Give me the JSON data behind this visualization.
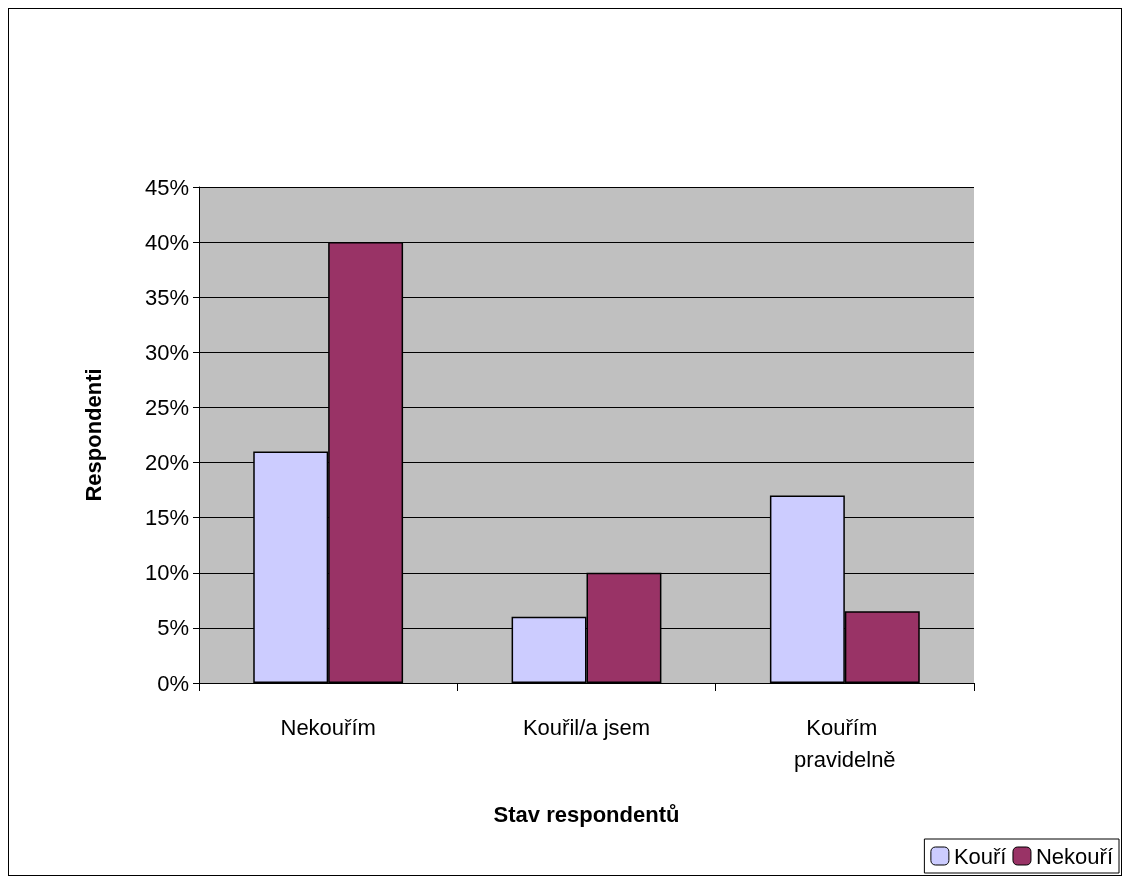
{
  "chart_data": {
    "type": "bar",
    "xlabel": "Stav respondentů",
    "ylabel": "Respondenti",
    "categories": [
      "Nekouřím",
      "Kouřil/a jsem",
      "Kouřím pravidelně"
    ],
    "series": [
      {
        "name": "Kouří",
        "color": "#ccccff",
        "values": [
          21,
          6,
          17
        ]
      },
      {
        "name": "Nekouří",
        "color": "#993366",
        "values": [
          40,
          10,
          6.5
        ]
      }
    ],
    "ylim": [
      0,
      45
    ],
    "yticks": [
      {
        "value": 0,
        "label": "0%"
      },
      {
        "value": 5,
        "label": "5%"
      },
      {
        "value": 10,
        "label": "10%"
      },
      {
        "value": 15,
        "label": "15%"
      },
      {
        "value": 20,
        "label": "20%"
      },
      {
        "value": 25,
        "label": "25%"
      },
      {
        "value": 30,
        "label": "30%"
      },
      {
        "value": 35,
        "label": "35%"
      },
      {
        "value": 40,
        "label": "40%"
      },
      {
        "value": 45,
        "label": "45%"
      }
    ],
    "grid": "y",
    "legend": "bottom right"
  }
}
